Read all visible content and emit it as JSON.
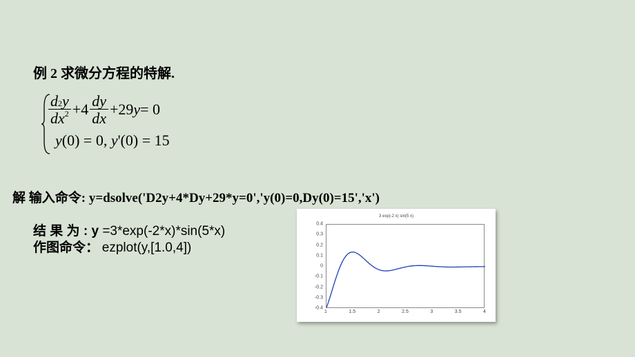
{
  "title_prefix": "例",
  "example_number": "2",
  "title_suffix": "   求微分方程的特解.",
  "equation": {
    "d2y": "d",
    "sq": "2",
    "y": "y",
    "dx": "dx",
    "plus1": " + ",
    "coef4": "4",
    "dy": "dy",
    "plus2": " + ",
    "coef29": "29",
    "eq0": " = 0",
    "ic": "y(0) = 0, y'(0) = 15"
  },
  "solve_label": "解 输入命令: ",
  "solve_code": "y=dsolve('D2y+4*Dy+29*y=0','y(0)=0,Dy(0)=15','x')",
  "result_label": "结 果 为 : ",
  "result_expr": "y =3*exp(-2*x)*sin(5*x)",
  "plot_label": "作图命令：",
  "plot_code": "ezplot(y,[1.0,4])",
  "chart": {
    "type": "line",
    "title": "3 exp(-2 x) sin(5 x)",
    "xlim": [
      1.0,
      4.0
    ],
    "ylim": [
      -0.4,
      0.4
    ],
    "ytick_values": [
      -0.4,
      -0.3,
      -0.2,
      -0.1,
      0,
      0.1,
      0.2,
      0.3,
      0.4
    ],
    "ytick_labels": [
      "-0.4",
      "-0.3",
      "-0.2",
      "-0.1",
      "0",
      "0.1",
      "0.2",
      "0.3",
      "0.4"
    ],
    "xtick_values": [
      1.0,
      1.5,
      2.0,
      2.5,
      3.0,
      3.5,
      4.0
    ],
    "xtick_labels": [
      "1",
      "1.5",
      "2",
      "2.5",
      "3",
      "3.5",
      "4"
    ],
    "line_color": "#1f3fb5",
    "background_color": "#ffffff",
    "border_color": "#888888",
    "line_width": 1.3,
    "x_samples": 80
  }
}
